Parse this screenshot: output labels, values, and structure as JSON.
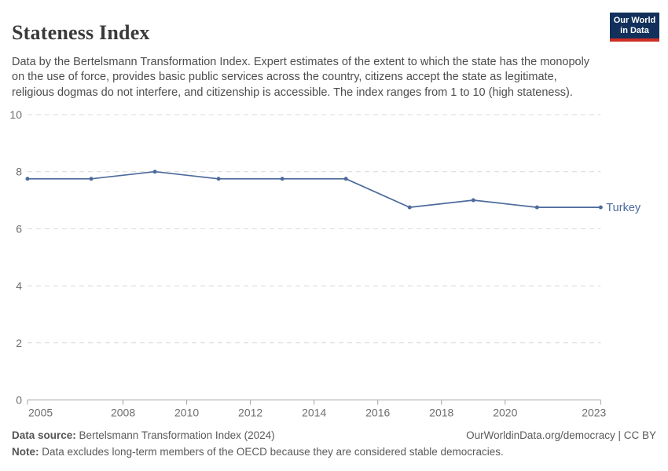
{
  "header": {
    "title": "Stateness Index",
    "logo": {
      "line1": "Our World",
      "line2": "in Data"
    }
  },
  "subtitle": "Data by the Bertelsmann Transformation Index. Expert estimates of the extent to which the state has the monopoly on the use of force, provides basic public services across the country, citizens accept the state as legitimate, religious dogmas do not interfere, and citizenship is accessible. The index ranges from 1 to 10 (high stateness).",
  "chart_data": {
    "type": "line",
    "title": "Stateness Index",
    "x": [
      2005,
      2007,
      2009,
      2011,
      2013,
      2015,
      2017,
      2019,
      2021,
      2023
    ],
    "series": [
      {
        "name": "Turkey",
        "values": [
          7.75,
          7.75,
          8,
          7.75,
          7.75,
          7.75,
          6.75,
          7,
          6.75,
          6.75
        ],
        "color": "#4c6a9c"
      }
    ],
    "x_ticks": [
      2005,
      2008,
      2010,
      2012,
      2014,
      2016,
      2018,
      2020,
      2023
    ],
    "y_ticks": [
      0,
      2,
      4,
      6,
      8,
      10
    ],
    "xlim": [
      2005,
      2023
    ],
    "ylim": [
      0,
      10
    ],
    "grid": "horizontal-dashed",
    "legend_position": "end-of-line",
    "end_label": "Turkey"
  },
  "footer": {
    "source_label": "Data source:",
    "source_text": " Bertelsmann Transformation Index (2024)",
    "right_text": "OurWorldinData.org/democracy | CC BY",
    "note_label": "Note:",
    "note_text": " Data excludes long-term members of the OECD because they are considered stable democracies."
  },
  "colors": {
    "accent_line": "#4c6a9c",
    "grid": "#d9d9d9",
    "axis": "#a3a3a3",
    "tick_label": "#6e6e6e",
    "logo_bg": "#12305b",
    "logo_red": "#cf2d25"
  }
}
